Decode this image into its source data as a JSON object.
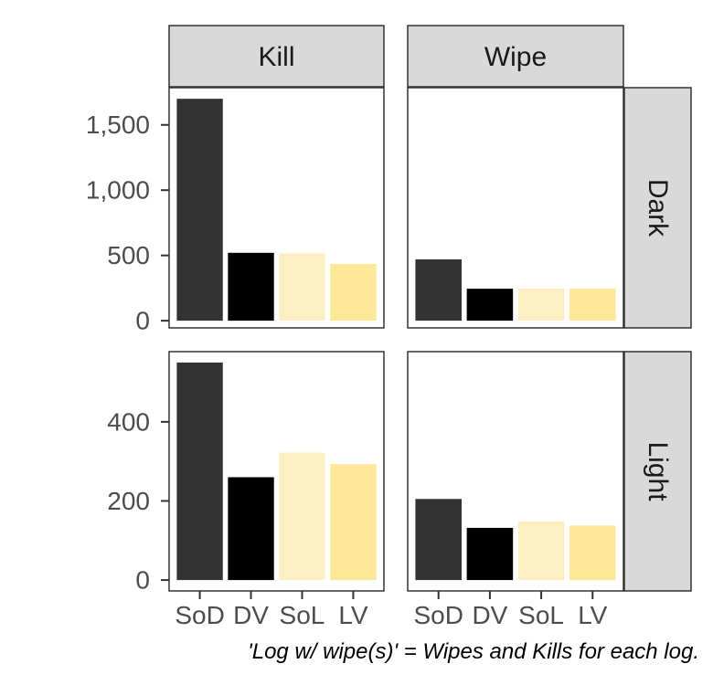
{
  "chart_data": {
    "type": "bar",
    "facet_cols": [
      "Kill",
      "Wipe"
    ],
    "facet_rows": [
      "Dark",
      "Light"
    ],
    "categories": [
      "SoD",
      "DV",
      "SoL",
      "LV"
    ],
    "colors": [
      "#333333",
      "#000000",
      "#fdefc4",
      "#fde897"
    ],
    "panels": [
      {
        "row": "Dark",
        "col": "Kill",
        "values": [
          1700,
          520,
          515,
          435
        ]
      },
      {
        "row": "Dark",
        "col": "Wipe",
        "values": [
          470,
          245,
          245,
          245
        ]
      },
      {
        "row": "Light",
        "col": "Kill",
        "values": [
          550,
          260,
          322,
          293
        ]
      },
      {
        "row": "Light",
        "col": "Wipe",
        "values": [
          205,
          132,
          148,
          138
        ]
      }
    ],
    "y_axis": {
      "Dark": {
        "ticks": [
          0,
          500,
          1000,
          1500
        ],
        "tick_labels": [
          "0",
          "500",
          "1,000",
          "1,500"
        ],
        "ylim": [
          -55,
          1785
        ]
      },
      "Light": {
        "ticks": [
          0,
          200,
          400
        ],
        "tick_labels": [
          "0",
          "200",
          "400"
        ],
        "ylim": [
          -27.5,
          577.5
        ]
      }
    },
    "y_scale": "free",
    "grid": false,
    "caption": "'Log w/ wipe(s)' = Wipes and Kills for each log."
  }
}
